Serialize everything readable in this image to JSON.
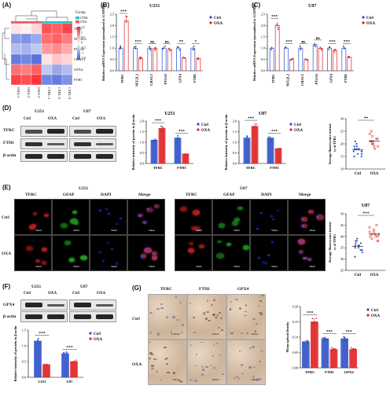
{
  "panels": {
    "A": {
      "label": "(A)",
      "legend_title": "Group",
      "legend_items": [
        "CTRL",
        "OXA"
      ],
      "scale_ticks": [
        "1.5",
        "1",
        "0.5",
        "0",
        "-0.5",
        "-1",
        "-1.5"
      ],
      "genes": [
        "TFRC",
        "NFE2L2",
        "PTGS2",
        "CHAC1",
        "GPX4",
        "FTH1"
      ],
      "samples": [
        "OXA-1",
        "OXA-2",
        "OXA-3",
        "CTRL-1",
        "CTRL-2",
        "CTRL-3"
      ],
      "matrix": [
        [
          0.2,
          0.1,
          0.3,
          1.2,
          1.1,
          1.3
        ],
        [
          -0.9,
          -1.0,
          -0.8,
          1.0,
          1.1,
          0.9
        ],
        [
          -0.6,
          -0.7,
          -0.5,
          0.7,
          0.8,
          0.6
        ],
        [
          -1.2,
          -1.1,
          -1.3,
          0.2,
          0.4,
          0.3
        ],
        [
          1.0,
          0.9,
          1.1,
          -0.5,
          -0.8,
          -0.6
        ],
        [
          1.3,
          1.2,
          1.4,
          -1.1,
          -1.2,
          -1.0
        ]
      ]
    },
    "B": {
      "label": "(B)",
      "title": "U251",
      "ylabel": "Relative mRNA Expression (normalized to GAPDH)",
      "yticks": [
        "0.0",
        "0.5",
        "1.0",
        "1.5",
        "2.0",
        "2.5"
      ],
      "sig": [
        "***",
        "***",
        "ns",
        "ns",
        "**",
        "*"
      ]
    },
    "C": {
      "label": "(C)",
      "title": "U87",
      "ylabel": "Relative mRNA Expression (normalized to GAPDH)",
      "yticks": [
        "0.0",
        "0.5",
        "1.0",
        "1.5",
        "2.0",
        "2.5"
      ],
      "sig": [
        "***",
        "***",
        "ns",
        "ns",
        "***",
        "***"
      ]
    },
    "D": {
      "label": "(D)",
      "cols": [
        "Ctrl",
        "OXA",
        "Ctrl",
        "OXA"
      ],
      "heads": [
        "U251",
        "U87"
      ],
      "rows": [
        "TFRC",
        "FTH1",
        "β-actin"
      ],
      "bar1_title": "U251",
      "bar2_title": "U87",
      "bar_ylabel": "Relative intensity of protein to β-actin",
      "bar_yticks": [
        "0.0",
        "0.5",
        "1.0",
        "1.5",
        "2.0"
      ],
      "bar_x": [
        "TFRC",
        "FTH1"
      ],
      "sig": [
        "***",
        "***"
      ],
      "fl_ylabel": "Average fluorescence intensi- ty of TFR1",
      "fl_sig": "**",
      "fl_yticks": [
        "10",
        "15",
        "20",
        "25",
        "30"
      ],
      "fl_x": [
        "Ctrl",
        "OXA"
      ]
    },
    "E": {
      "label": "(E)",
      "heads": [
        "U251",
        "U87"
      ],
      "cols": [
        "TFRC",
        "GFAP",
        "DAPI",
        "Merge",
        "TFRC",
        "GFAP",
        "DAPI",
        "Merge"
      ],
      "rows": [
        "Ctrl",
        "OXA"
      ],
      "scale": "50um",
      "fl_title": "U87",
      "fl_ylabel": "Average fluorescence intensi- ty of TFR1",
      "fl_sig": "***",
      "fl_yticks": [
        "25",
        "30",
        "35",
        "40",
        "45",
        "50"
      ],
      "fl_x": [
        "Ctrl",
        "OXA"
      ]
    },
    "F": {
      "label": "(F)",
      "heads": [
        "U251",
        "U87"
      ],
      "cols": [
        "Ctrl",
        "OXA",
        "Ctrl",
        "OXA"
      ],
      "rows": [
        "GPX4",
        "β-actin"
      ],
      "bar_ylabel": "Relative intensity of protein to β-actin",
      "bar_yticks": [
        "0.0",
        "0.5",
        "1.0",
        "1.5"
      ],
      "bar_x": [
        "U251",
        "U87"
      ],
      "sig": [
        "***",
        "***"
      ]
    },
    "G": {
      "label": "(G)",
      "cols": [
        "TFRC",
        "FTH1",
        "GPX4"
      ],
      "rows": [
        "Ctrl",
        "OXA"
      ],
      "scale": "100um",
      "ylabel": "Mean optical density",
      "yticks": [
        "0.00",
        "0.05",
        "0.10",
        "0.15",
        "0.20"
      ],
      "x": [
        "TFRC",
        "FTH1",
        "GPX4"
      ],
      "sig": [
        "***",
        "***",
        "***"
      ]
    }
  },
  "legend": {
    "ctrl": "Ctrl",
    "oxa": "OXA"
  },
  "colors": {
    "ctrl": "#2d50c8",
    "oxa": "#e02020",
    "hm_pos": "#e8262a",
    "hm_neg": "#3f5bd6",
    "group_ctrl": "#2ec4c4",
    "group_oxa": "#f05a70"
  },
  "chart_data": [
    {
      "id": "B",
      "type": "bar",
      "categories": [
        "TFRC",
        "NFE2L2",
        "CHAC1",
        "PTGS2",
        "GPX4",
        "FTH1"
      ],
      "series": [
        {
          "name": "Ctrl",
          "values": [
            1.0,
            1.0,
            1.0,
            1.0,
            1.0,
            1.0
          ]
        },
        {
          "name": "OXA",
          "values": [
            2.2,
            0.55,
            1.0,
            0.95,
            0.55,
            0.55
          ]
        }
      ],
      "ylim": [
        0,
        2.5
      ]
    },
    {
      "id": "C",
      "type": "bar",
      "categories": [
        "TFRC",
        "NFE2L2",
        "CHAC1",
        "PTGS2",
        "GPX4",
        "FTH1"
      ],
      "series": [
        {
          "name": "Ctrl",
          "values": [
            1.0,
            1.0,
            1.0,
            1.15,
            1.0,
            1.0
          ]
        },
        {
          "name": "OXA",
          "values": [
            2.0,
            0.5,
            0.5,
            1.0,
            0.9,
            0.6
          ]
        }
      ],
      "ylim": [
        0,
        2.5
      ]
    },
    {
      "id": "D1",
      "type": "bar",
      "categories": [
        "TFRC",
        "FTH1"
      ],
      "series": [
        {
          "name": "Ctrl",
          "values": [
            1.1,
            1.2
          ]
        },
        {
          "name": "OXA",
          "values": [
            1.65,
            0.45
          ]
        }
      ],
      "ylim": [
        0,
        2.0
      ]
    },
    {
      "id": "D2",
      "type": "bar",
      "categories": [
        "TFRC",
        "FTH1"
      ],
      "series": [
        {
          "name": "Ctrl",
          "values": [
            1.2,
            1.2
          ]
        },
        {
          "name": "OXA",
          "values": [
            1.75,
            0.7
          ]
        }
      ],
      "ylim": [
        0,
        2.0
      ]
    },
    {
      "id": "D3",
      "type": "scatter",
      "categories": [
        "Ctrl",
        "OXA"
      ],
      "series": [
        {
          "name": "Ctrl",
          "values": [
            15,
            16,
            17,
            18,
            17,
            19,
            20,
            16,
            18,
            21,
            15,
            17,
            19,
            18
          ]
        },
        {
          "name": "OXA",
          "values": [
            19,
            20,
            21,
            22,
            20,
            23,
            24,
            19,
            21,
            22,
            20,
            25,
            18,
            21
          ]
        }
      ],
      "ylim": [
        10,
        30
      ]
    },
    {
      "id": "E2",
      "type": "scatter",
      "categories": [
        "Ctrl",
        "OXA"
      ],
      "series": [
        {
          "name": "Ctrl",
          "values": [
            33,
            35,
            36,
            37,
            34,
            38,
            39,
            35,
            36,
            31,
            37,
            34,
            36,
            38
          ]
        },
        {
          "name": "OXA",
          "values": [
            38,
            40,
            41,
            42,
            40,
            43,
            44,
            39,
            41,
            42,
            40,
            45,
            38,
            41
          ]
        }
      ],
      "ylim": [
        25,
        50
      ]
    },
    {
      "id": "F",
      "type": "bar",
      "categories": [
        "U251",
        "U87"
      ],
      "series": [
        {
          "name": "Ctrl",
          "values": [
            1.15,
            0.75
          ]
        },
        {
          "name": "OXA",
          "values": [
            0.4,
            0.5
          ]
        }
      ],
      "ylim": [
        0,
        1.5
      ]
    },
    {
      "id": "G",
      "type": "bar",
      "categories": [
        "TFRC",
        "FTH1",
        "GPX4"
      ],
      "series": [
        {
          "name": "Ctrl",
          "values": [
            0.085,
            0.095,
            0.095
          ]
        },
        {
          "name": "OXA",
          "values": [
            0.15,
            0.06,
            0.06
          ]
        }
      ],
      "ylim": [
        0,
        0.2
      ]
    }
  ]
}
